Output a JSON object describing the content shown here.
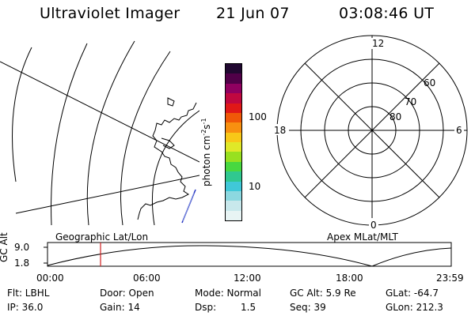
{
  "header": {
    "instrument": "Ultraviolet Imager",
    "date": "21 Jun 07",
    "time": "03:08:46 UT"
  },
  "colorbar": {
    "label_main": "photon cm",
    "label_exp1": "-2",
    "label_mid": "s",
    "label_exp2": "-1",
    "ticks": [
      "100",
      "10"
    ],
    "colors": [
      "#e8f4f4",
      "#c8e8ec",
      "#8cd8e0",
      "#40c8d8",
      "#30c890",
      "#48d840",
      "#98e020",
      "#e0e828",
      "#f8c818",
      "#f89010",
      "#f05808",
      "#e01818",
      "#c00840",
      "#900060",
      "#500048",
      "#200830"
    ]
  },
  "polar": {
    "mlt_labels": {
      "top": "12",
      "bottom": "0",
      "left": "18",
      "right": "6"
    },
    "lat_labels": [
      "80",
      "70",
      "60"
    ]
  },
  "timeline": {
    "ylabel": "GC Alt",
    "y_ticks": [
      "9.0",
      "1.8"
    ],
    "left_title": "Geographic Lat/Lon",
    "right_title": "Apex MLat/MLT",
    "x_ticks": [
      "00:00",
      "06:00",
      "12:00",
      "18:00",
      "23:59"
    ],
    "marker_color": "#d02020"
  },
  "info": {
    "filter": "Flt: LBHL",
    "ip": "IP: 36.0",
    "door": "Door: Open",
    "gain": "Gain: 14",
    "mode": "Mode: Normal",
    "dsp_label": "Dsp:",
    "dsp_value": "1.5",
    "gcalt": "GC Alt: 5.9 Re",
    "seq": "Seq: 39",
    "glat": "GLat: -64.7",
    "glon": "GLon: 212.3"
  }
}
